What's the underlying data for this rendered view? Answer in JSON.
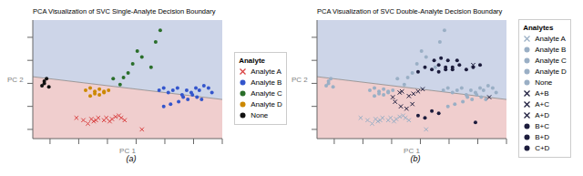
{
  "chart_data": [
    {
      "type": "scatter",
      "title": "PCA Visualization of SVC Single-Analyte Decision Boundary",
      "xlabel": "PC 1",
      "ylabel": "PC 2",
      "xlim": [
        -0.9,
        0.75
      ],
      "ylim": [
        -0.48,
        0.55
      ],
      "xticks": [
        -0.75,
        -0.5,
        -0.25,
        0,
        0.25,
        0.5,
        0.75
      ],
      "yticks": [
        -0.4,
        -0.2,
        0,
        0.2,
        0.4
      ],
      "tick_labels": false,
      "grid": false,
      "legend": "right",
      "legend_title": "Analyte",
      "annotations": [
        "(a)"
      ],
      "background": {
        "above": "#cdd5e8",
        "below": "#f0cece"
      },
      "boundary": {
        "x": [
          -0.9,
          0.75
        ],
        "y": [
          0.058,
          -0.14
        ],
        "color": "#888888"
      },
      "series": [
        {
          "name": "Analyte A",
          "color": "#d94040",
          "marker": "x",
          "x": [
            -0.52,
            -0.46,
            -0.42,
            -0.39,
            -0.37,
            -0.35,
            -0.33,
            -0.28,
            -0.26,
            -0.23,
            -0.21,
            -0.18,
            -0.15,
            -0.13,
            -0.1,
            0.05
          ],
          "y": [
            -0.3,
            -0.32,
            -0.35,
            -0.31,
            -0.33,
            -0.32,
            -0.3,
            -0.32,
            -0.3,
            -0.33,
            -0.31,
            -0.29,
            -0.28,
            -0.3,
            -0.32,
            -0.4
          ]
        },
        {
          "name": "Analyte B",
          "color": "#3355cc",
          "marker": "o",
          "x": [
            0.2,
            0.24,
            0.28,
            0.32,
            0.36,
            0.4,
            0.44,
            0.48,
            0.52,
            0.55,
            0.59,
            0.63,
            0.66,
            0.41,
            0.45,
            0.49,
            0.53,
            0.57,
            0.37,
            0.3,
            0.24
          ],
          "y": [
            -0.06,
            -0.04,
            -0.08,
            -0.06,
            -0.04,
            -0.1,
            -0.06,
            -0.08,
            -0.04,
            -0.06,
            -0.02,
            -0.04,
            -0.08,
            -0.12,
            -0.14,
            -0.1,
            -0.12,
            -0.14,
            -0.16,
            -0.18,
            -0.2
          ]
        },
        {
          "name": "Analyte C",
          "color": "#2a6e2a",
          "marker": "o",
          "x": [
            -0.2,
            -0.14,
            -0.11,
            -0.07,
            -0.03,
            0.01,
            0.05,
            0.13,
            0.17,
            0.21
          ],
          "y": [
            0.04,
            -0.01,
            0.05,
            0.09,
            0.17,
            0.28,
            0.23,
            0.14,
            0.36,
            0.46
          ]
        },
        {
          "name": "Analyte D",
          "color": "#cc8800",
          "marker": "o",
          "x": [
            -0.44,
            -0.4,
            -0.36,
            -0.32,
            -0.28,
            -0.24,
            -0.4,
            -0.36,
            -0.32,
            -0.28
          ],
          "y": [
            -0.06,
            -0.04,
            -0.07,
            -0.05,
            -0.07,
            -0.06,
            -0.11,
            -0.09,
            -0.1,
            -0.08
          ]
        },
        {
          "name": "None",
          "color": "#111111",
          "marker": "o",
          "x": [
            -0.8,
            -0.82,
            -0.8,
            -0.78,
            -0.76
          ],
          "y": [
            0.0,
            -0.02,
            0.02,
            0.04,
            -0.03
          ]
        }
      ]
    },
    {
      "type": "scatter",
      "title": "PCA Visualization of SVC Double-Analyte Decision Boundary",
      "xlabel": "PC 1",
      "ylabel": "PC 2",
      "xlim": [
        -0.9,
        0.75
      ],
      "ylim": [
        -0.48,
        0.55
      ],
      "xticks": [
        -0.75,
        -0.5,
        -0.25,
        0,
        0.25,
        0.5,
        0.75
      ],
      "yticks": [
        -0.4,
        -0.2,
        0,
        0.2,
        0.4
      ],
      "tick_labels": false,
      "grid": false,
      "legend": "right",
      "legend_title": "Analytes",
      "annotations": [
        "(b)"
      ],
      "background": {
        "above": "#cdd5e8",
        "below": "#f0cece"
      },
      "boundary": {
        "x": [
          -0.9,
          0.75
        ],
        "y": [
          0.058,
          -0.14
        ],
        "color": "#888888"
      },
      "series": [
        {
          "name": "Analyte A",
          "color": "#9aafc5",
          "marker": "x",
          "x": [
            -0.52,
            -0.46,
            -0.42,
            -0.39,
            -0.37,
            -0.35,
            -0.33,
            -0.28,
            -0.26,
            -0.23,
            -0.21,
            -0.18,
            -0.15,
            -0.13,
            -0.1,
            0.05
          ],
          "y": [
            -0.3,
            -0.32,
            -0.35,
            -0.31,
            -0.33,
            -0.32,
            -0.3,
            -0.32,
            -0.3,
            -0.33,
            -0.31,
            -0.29,
            -0.28,
            -0.3,
            -0.32,
            -0.4
          ]
        },
        {
          "name": "Analyte B",
          "color": "#9aafc5",
          "marker": "o",
          "x": [
            0.2,
            0.24,
            0.28,
            0.32,
            0.36,
            0.4,
            0.44,
            0.48,
            0.52,
            0.55,
            0.59,
            0.63,
            0.66,
            0.41,
            0.45,
            0.49,
            0.53,
            0.57,
            0.37,
            0.3,
            0.24
          ],
          "y": [
            -0.06,
            -0.04,
            -0.08,
            -0.06,
            -0.04,
            -0.1,
            -0.06,
            -0.08,
            -0.04,
            -0.06,
            -0.02,
            -0.04,
            -0.08,
            -0.12,
            -0.14,
            -0.1,
            -0.12,
            -0.14,
            -0.16,
            -0.18,
            -0.2
          ]
        },
        {
          "name": "Analyte C",
          "color": "#9aafc5",
          "marker": "o",
          "x": [
            -0.2,
            -0.14,
            -0.11,
            -0.07,
            -0.03,
            0.01,
            0.05,
            0.13,
            0.17,
            0.21
          ],
          "y": [
            0.04,
            -0.01,
            0.05,
            0.09,
            0.17,
            0.28,
            0.23,
            0.14,
            0.36,
            0.46
          ]
        },
        {
          "name": "Analyte D",
          "color": "#9aafc5",
          "marker": "o",
          "x": [
            -0.44,
            -0.4,
            -0.36,
            -0.32,
            -0.28,
            -0.24,
            -0.4,
            -0.36,
            -0.32,
            -0.28
          ],
          "y": [
            -0.06,
            -0.04,
            -0.07,
            -0.05,
            -0.07,
            -0.06,
            -0.11,
            -0.09,
            -0.1,
            -0.08
          ]
        },
        {
          "name": "None",
          "color": "#9aafc5",
          "marker": "o",
          "x": [
            -0.8,
            -0.82,
            -0.8,
            -0.78,
            -0.76
          ],
          "y": [
            0.0,
            -0.02,
            0.02,
            0.04,
            -0.03
          ]
        },
        {
          "name": "A+B",
          "color": "#1c1c3c",
          "marker": "x",
          "x": [
            -0.22,
            -0.17,
            -0.12,
            -0.07,
            -0.24,
            -0.18
          ],
          "y": [
            -0.16,
            -0.2,
            -0.22,
            -0.18,
            -0.12,
            -0.08
          ]
        },
        {
          "name": "A+C",
          "color": "#1c1c3c",
          "marker": "x",
          "x": [
            -0.16,
            -0.1,
            -0.06,
            -0.02,
            0.02
          ],
          "y": [
            -0.07,
            -0.11,
            -0.09,
            -0.07,
            -0.05
          ]
        },
        {
          "name": "A+D",
          "color": "#1c1c3c",
          "marker": "x",
          "x": [
            0.46,
            0.6
          ],
          "y": [
            0.16,
            -0.12
          ]
        },
        {
          "name": "B+C",
          "color": "#1c1c3c",
          "marker": "o",
          "x": [
            -0.02,
            0.04,
            0.1,
            0.16,
            0.22,
            0.28,
            0.12,
            0.18,
            0.24
          ],
          "y": [
            0.1,
            0.14,
            0.12,
            0.16,
            0.14,
            0.12,
            0.2,
            0.22,
            0.2
          ]
        },
        {
          "name": "B+D",
          "color": "#1c1c3c",
          "marker": "o",
          "x": [
            0.16,
            0.22,
            0.28,
            0.34,
            0.4,
            0.46,
            0.52,
            0.32
          ],
          "y": [
            0.1,
            0.12,
            0.14,
            0.16,
            0.12,
            0.14,
            0.16,
            0.2
          ]
        },
        {
          "name": "C+D",
          "color": "#1c1c3c",
          "marker": "o",
          "x": [
            -0.02,
            0.04,
            0.1,
            0.16,
            0.48
          ],
          "y": [
            -0.28,
            -0.3,
            -0.24,
            -0.26,
            -0.34
          ]
        }
      ]
    }
  ]
}
